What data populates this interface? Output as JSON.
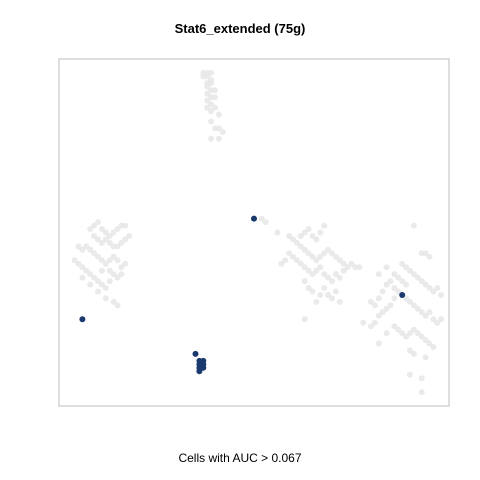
{
  "chart_data": {
    "type": "scatter",
    "title": "Stat6_extended (75g)",
    "subtitle": "Cells with AUC > 0.067",
    "xlabel": "",
    "ylabel": "",
    "xlim": [
      0,
      100
    ],
    "ylim": [
      0,
      100
    ],
    "grid": false,
    "colors": {
      "background_points": "#e6e6e6",
      "highlight_points": "#1a3a6e",
      "frame": "#bdbdbd"
    },
    "series": [
      {
        "points": [
          [
            37,
            96
          ],
          [
            38,
            96
          ],
          [
            39,
            96
          ],
          [
            37,
            95
          ],
          [
            38,
            95
          ],
          [
            39,
            94
          ],
          [
            38,
            93
          ],
          [
            39,
            93
          ],
          [
            38,
            92
          ],
          [
            39,
            91
          ],
          [
            40,
            91
          ],
          [
            38,
            90
          ],
          [
            39,
            89
          ],
          [
            40,
            89
          ],
          [
            38,
            88
          ],
          [
            39,
            87
          ],
          [
            40,
            86
          ],
          [
            38,
            86
          ],
          [
            39,
            85
          ],
          [
            41,
            84
          ],
          [
            39,
            82
          ],
          [
            40,
            80
          ],
          [
            42,
            79
          ],
          [
            41,
            77
          ],
          [
            39,
            77
          ],
          [
            41,
            80
          ],
          [
            9,
            52
          ],
          [
            10,
            53
          ],
          [
            8,
            51
          ],
          [
            11,
            51
          ],
          [
            12,
            50
          ],
          [
            13,
            49
          ],
          [
            14,
            50
          ],
          [
            15,
            51
          ],
          [
            16,
            52
          ],
          [
            17,
            52
          ],
          [
            9,
            49
          ],
          [
            10,
            48
          ],
          [
            11,
            47
          ],
          [
            12,
            48
          ],
          [
            13,
            47
          ],
          [
            14,
            46
          ],
          [
            15,
            46
          ],
          [
            16,
            47
          ],
          [
            17,
            48
          ],
          [
            18,
            49
          ],
          [
            5,
            46
          ],
          [
            6,
            45
          ],
          [
            7,
            46
          ],
          [
            8,
            45
          ],
          [
            9,
            44
          ],
          [
            10,
            43
          ],
          [
            11,
            42
          ],
          [
            12,
            41
          ],
          [
            13,
            42
          ],
          [
            14,
            43
          ],
          [
            15,
            42
          ],
          [
            16,
            40
          ],
          [
            17,
            41
          ],
          [
            4,
            42
          ],
          [
            5,
            41
          ],
          [
            6,
            40
          ],
          [
            7,
            39
          ],
          [
            8,
            38
          ],
          [
            9,
            37
          ],
          [
            10,
            36
          ],
          [
            11,
            35
          ],
          [
            12,
            34
          ],
          [
            13,
            36
          ],
          [
            14,
            38
          ],
          [
            15,
            37
          ],
          [
            16,
            38
          ],
          [
            12,
            31
          ],
          [
            14,
            30
          ],
          [
            15,
            29
          ],
          [
            10,
            33
          ],
          [
            8,
            35
          ],
          [
            6,
            37
          ],
          [
            13,
            39
          ],
          [
            11,
            39
          ],
          [
            52,
            54
          ],
          [
            53,
            53
          ],
          [
            56,
            50
          ],
          [
            59,
            49
          ],
          [
            60,
            48
          ],
          [
            61,
            47
          ],
          [
            62,
            49
          ],
          [
            63,
            50
          ],
          [
            64,
            51
          ],
          [
            65,
            49
          ],
          [
            66,
            48
          ],
          [
            67,
            50
          ],
          [
            68,
            52
          ],
          [
            62,
            46
          ],
          [
            63,
            45
          ],
          [
            64,
            44
          ],
          [
            65,
            43
          ],
          [
            66,
            42
          ],
          [
            67,
            43
          ],
          [
            68,
            44
          ],
          [
            69,
            45
          ],
          [
            70,
            44
          ],
          [
            71,
            43
          ],
          [
            72,
            42
          ],
          [
            73,
            41
          ],
          [
            59,
            44
          ],
          [
            60,
            43
          ],
          [
            61,
            42
          ],
          [
            62,
            41
          ],
          [
            63,
            40
          ],
          [
            64,
            39
          ],
          [
            65,
            38
          ],
          [
            66,
            39
          ],
          [
            67,
            40
          ],
          [
            68,
            38
          ],
          [
            69,
            37
          ],
          [
            70,
            36
          ],
          [
            71,
            38
          ],
          [
            72,
            37
          ],
          [
            73,
            39
          ],
          [
            74,
            40
          ],
          [
            75,
            41
          ],
          [
            76,
            40
          ],
          [
            77,
            40
          ],
          [
            58,
            42
          ],
          [
            57,
            41
          ],
          [
            63,
            36
          ],
          [
            64,
            34
          ],
          [
            65,
            33
          ],
          [
            66,
            30
          ],
          [
            67,
            32
          ],
          [
            68,
            34
          ],
          [
            69,
            32
          ],
          [
            70,
            31
          ],
          [
            71,
            33
          ],
          [
            72,
            30
          ],
          [
            63,
            25
          ],
          [
            91,
            52
          ],
          [
            93,
            44
          ],
          [
            94,
            44
          ],
          [
            95,
            43
          ],
          [
            88,
            41
          ],
          [
            89,
            40
          ],
          [
            90,
            39
          ],
          [
            91,
            38
          ],
          [
            92,
            37
          ],
          [
            93,
            36
          ],
          [
            94,
            35
          ],
          [
            95,
            34
          ],
          [
            96,
            33
          ],
          [
            97,
            34
          ],
          [
            98,
            32
          ],
          [
            87,
            37
          ],
          [
            88,
            36
          ],
          [
            89,
            35
          ],
          [
            86,
            34
          ],
          [
            87,
            33
          ],
          [
            88,
            32
          ],
          [
            89,
            31
          ],
          [
            90,
            30
          ],
          [
            91,
            29
          ],
          [
            92,
            28
          ],
          [
            93,
            27
          ],
          [
            94,
            26
          ],
          [
            95,
            27
          ],
          [
            96,
            25
          ],
          [
            97,
            24
          ],
          [
            98,
            25
          ],
          [
            86,
            31
          ],
          [
            85,
            29
          ],
          [
            84,
            28
          ],
          [
            83,
            27
          ],
          [
            82,
            26
          ],
          [
            81,
            24
          ],
          [
            80,
            23
          ],
          [
            86,
            23
          ],
          [
            87,
            22
          ],
          [
            88,
            21
          ],
          [
            89,
            20
          ],
          [
            90,
            21
          ],
          [
            91,
            22
          ],
          [
            92,
            21
          ],
          [
            93,
            20
          ],
          [
            94,
            19
          ],
          [
            95,
            18
          ],
          [
            96,
            17
          ],
          [
            81,
            29
          ],
          [
            82,
            31
          ],
          [
            83,
            33
          ],
          [
            84,
            35
          ],
          [
            85,
            36
          ],
          [
            86,
            38
          ],
          [
            90,
            16
          ],
          [
            91,
            15
          ],
          [
            94,
            14
          ],
          [
            90,
            9
          ],
          [
            93,
            8
          ],
          [
            93,
            4
          ],
          [
            82,
            18
          ],
          [
            84,
            21
          ],
          [
            78,
            24
          ],
          [
            80,
            30
          ],
          [
            82,
            38
          ],
          [
            84,
            40
          ]
        ]
      },
      {
        "points": [
          [
            6,
            25
          ],
          [
            50,
            54
          ],
          [
            35,
            15
          ],
          [
            36,
            13
          ],
          [
            36,
            12
          ],
          [
            36,
            11
          ],
          [
            37,
            12
          ],
          [
            37,
            11
          ],
          [
            36,
            10
          ],
          [
            37,
            13
          ],
          [
            88,
            32
          ]
        ]
      }
    ]
  }
}
